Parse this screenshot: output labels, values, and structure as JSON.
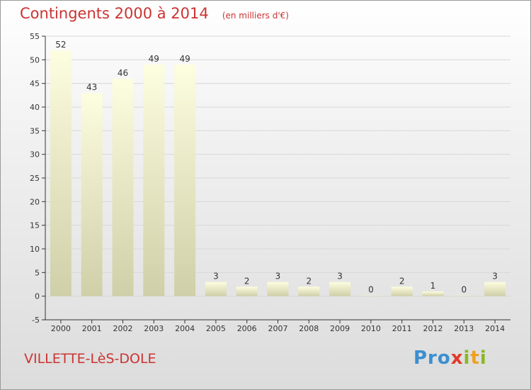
{
  "title": "Contingents 2000 à 2014",
  "unit": "(en milliers d'€)",
  "commune": "VILLETTE-LèS-DOLE",
  "logo_text": "Proxiti",
  "colors": {
    "title": "#cc3333",
    "bar_light": "#fdfde0",
    "bar_dark": "#cfcfa8",
    "axis": "#333333",
    "grid": "#d8d8d8"
  },
  "chart_data": {
    "type": "bar",
    "title": "Contingents 2000 à 2014",
    "subtitle": "(en milliers d'€)",
    "categories": [
      "2000",
      "2001",
      "2002",
      "2003",
      "2004",
      "2005",
      "2006",
      "2007",
      "2008",
      "2009",
      "2010",
      "2011",
      "2012",
      "2013",
      "2014"
    ],
    "values": [
      52,
      43,
      46,
      49,
      49,
      3,
      2,
      3,
      2,
      3,
      0,
      2,
      1,
      0,
      3
    ],
    "ylim": [
      -5,
      55
    ],
    "yticks": [
      -5,
      0,
      5,
      10,
      15,
      20,
      25,
      30,
      35,
      40,
      45,
      50,
      55
    ],
    "grid": true,
    "xlabel": "",
    "ylabel": ""
  }
}
